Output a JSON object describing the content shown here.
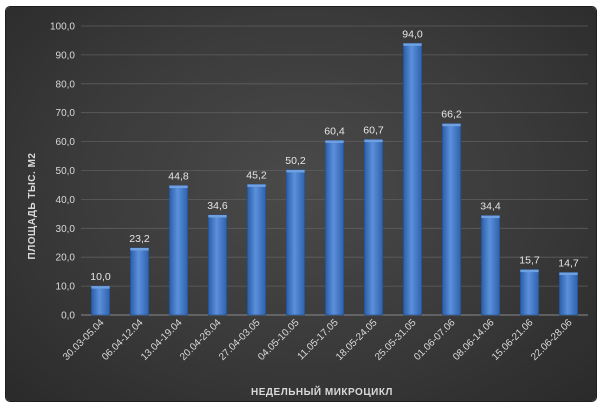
{
  "chart_data": {
    "type": "bar",
    "categories": [
      "30.03-05.04",
      "06.04-12.04",
      "13.04-19.04",
      "20.04-26.04",
      "27.04-03.05",
      "04.05-10.05",
      "11.05-17.05",
      "18.05-24.05",
      "25.05-31.05",
      "01.06-07.06",
      "08.06-14.06",
      "15.06-21.06",
      "22.06-28.06"
    ],
    "values": [
      10.0,
      23.2,
      44.8,
      34.6,
      45.2,
      50.2,
      60.4,
      60.7,
      94.0,
      66.2,
      34.4,
      15.7,
      14.7
    ],
    "value_labels": [
      "10,0",
      "23,2",
      "44,8",
      "34,6",
      "45,2",
      "50,2",
      "60,4",
      "60,7",
      "94,0",
      "66,2",
      "34,4",
      "15,7",
      "14,7"
    ],
    "y_ticks": [
      0,
      10,
      20,
      30,
      40,
      50,
      60,
      70,
      80,
      90,
      100
    ],
    "y_tick_labels": [
      "0,0",
      "10,0",
      "20,0",
      "30,0",
      "40,0",
      "50,0",
      "60,0",
      "70,0",
      "80,0",
      "90,0",
      "100,0"
    ],
    "ylim": [
      0,
      100
    ],
    "xlabel": "НЕДЕЛЬНЫЙ МИКРОЦИКЛ",
    "ylabel": "ПЛОЩАДЬ ТЫС. М2",
    "title": "",
    "grid": true,
    "legend": "none",
    "colors": {
      "bar_top": "#6fa0e0",
      "bar_mid": "#3f78c8",
      "bar_bottom": "#2c5ea8",
      "background": "#3a3a3a"
    }
  }
}
